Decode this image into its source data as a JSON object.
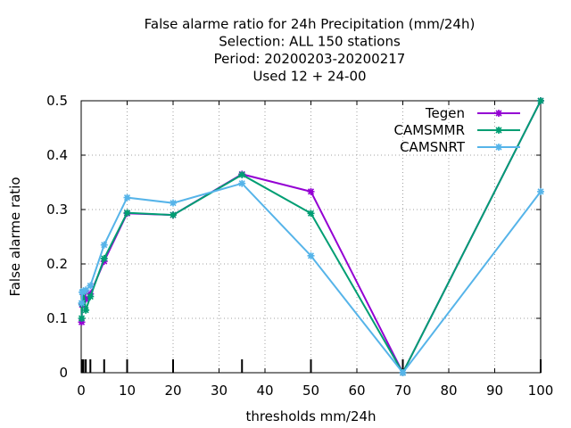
{
  "chart_data": {
    "type": "line",
    "title_lines": [
      "False alarme ratio  for 24h Precipitation (mm/24h)",
      "Selection: ALL    150 stations",
      "Period: 20200203-20200217",
      "Used  12 + 24-00"
    ],
    "xlabel": "thresholds mm/24h",
    "ylabel": "False alarme ratio",
    "xlim": [
      0,
      100
    ],
    "ylim": [
      0,
      0.5
    ],
    "xticks": [
      0,
      10,
      20,
      30,
      40,
      50,
      60,
      70,
      80,
      90,
      100
    ],
    "yticks": [
      0,
      0.1,
      0.2,
      0.3,
      0.4,
      0.5
    ],
    "xtick_labels": [
      "0",
      "10",
      "20",
      "30",
      "40",
      "50",
      "60",
      "70",
      "80",
      "90",
      "100"
    ],
    "ytick_labels": [
      "0",
      "0.1",
      "0.2",
      "0.3",
      "0.4",
      "0.5"
    ],
    "grid": true,
    "legend_position": "top-right",
    "threshold_marks": [
      0.1,
      0.2,
      0.3,
      0.5,
      1,
      2,
      5,
      10,
      20,
      35,
      50,
      70,
      100
    ],
    "series": [
      {
        "name": "Tegen",
        "color": "#9400d3",
        "x": [
          0.1,
          0.2,
          0.5,
          1,
          2,
          5,
          10,
          20,
          35,
          50,
          70,
          100
        ],
        "y": [
          0.093,
          0.125,
          0.147,
          0.135,
          0.145,
          0.205,
          0.293,
          0.29,
          0.365,
          0.333,
          0.0,
          0.5
        ]
      },
      {
        "name": "CAMSMMR",
        "color": "#009e73",
        "x": [
          0.1,
          0.2,
          0.5,
          1,
          2,
          5,
          10,
          20,
          35,
          50,
          70,
          100
        ],
        "y": [
          0.1,
          0.127,
          0.149,
          0.115,
          0.14,
          0.21,
          0.294,
          0.29,
          0.364,
          0.293,
          0.0,
          0.5
        ]
      },
      {
        "name": "CAMSNRT",
        "color": "#56b4e9",
        "x": [
          0.1,
          0.2,
          0.5,
          1,
          2,
          5,
          10,
          20,
          35,
          50,
          70,
          100
        ],
        "y": [
          0.128,
          0.148,
          0.15,
          0.152,
          0.16,
          0.235,
          0.322,
          0.312,
          0.348,
          0.215,
          0.0,
          0.333
        ]
      }
    ]
  }
}
